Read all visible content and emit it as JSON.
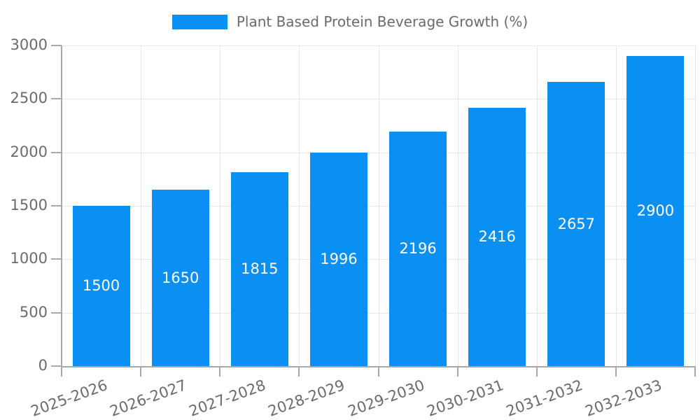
{
  "chart_data": {
    "type": "bar",
    "title": "Plant Based Protein Beverage Growth (%)",
    "legend_label": "Plant Based Protein Beverage Growth (%)",
    "legend_position": "top-center",
    "categories": [
      "2025-2026",
      "2026-2027",
      "2027-2028",
      "2028-2029",
      "2029-2030",
      "2030-2031",
      "2031-2032",
      "2032-2033"
    ],
    "values": [
      1500,
      1650,
      1815,
      1996,
      2196,
      2416,
      2657,
      2900
    ],
    "xlabel": "",
    "ylabel": "",
    "ylim": [
      0,
      3000
    ],
    "y_ticks": [
      0,
      500,
      1000,
      1500,
      2000,
      2500,
      3000
    ],
    "grid": true,
    "x_tick_rotation_deg": 20,
    "colors": {
      "bar": "#0A90F2",
      "bar_label": "#FFFFFF",
      "tick_label": "#6B6B6B",
      "legend_text": "#6B6B6B",
      "gridline": "#E6E6E6",
      "axis": "#A8A8A8",
      "background": "#FFFFFF"
    }
  }
}
